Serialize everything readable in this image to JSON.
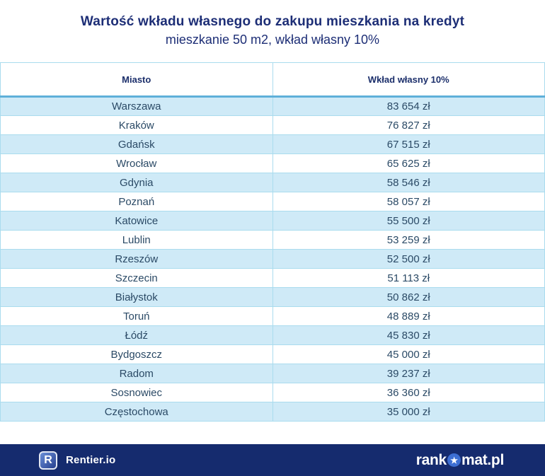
{
  "title": "Wartość wkładu własnego do zakupu mieszkania na kredyt",
  "subtitle": "mieszkanie 50 m2, wkład własny 10%",
  "table": {
    "headers": {
      "city": "Miasto",
      "value": "Wkład własny 10%"
    },
    "rows": [
      {
        "city": "Warszawa",
        "value": "83 654 zł"
      },
      {
        "city": "Kraków",
        "value": "76 827 zł"
      },
      {
        "city": "Gdańsk",
        "value": "67 515 zł"
      },
      {
        "city": "Wrocław",
        "value": "65 625 zł"
      },
      {
        "city": "Gdynia",
        "value": "58 546 zł"
      },
      {
        "city": "Poznań",
        "value": "58 057 zł"
      },
      {
        "city": "Katowice",
        "value": "55 500 zł"
      },
      {
        "city": "Lublin",
        "value": "53 259 zł"
      },
      {
        "city": "Rzeszów",
        "value": "52 500 zł"
      },
      {
        "city": "Szczecin",
        "value": "51 113 zł"
      },
      {
        "city": "Białystok",
        "value": "50 862 zł"
      },
      {
        "city": "Toruń",
        "value": "48 889 zł"
      },
      {
        "city": "Łódź",
        "value": "45 830 zł"
      },
      {
        "city": "Bydgoszcz",
        "value": "45 000 zł"
      },
      {
        "city": "Radom",
        "value": "39 237 zł"
      },
      {
        "city": "Sosnowiec",
        "value": "36 360 zł"
      },
      {
        "city": "Częstochowa",
        "value": "35 000 zł"
      }
    ]
  },
  "footer": {
    "rentier_initial": "R",
    "rentier_label": "Rentier.io",
    "rankomat_prefix": "rank",
    "rankomat_suffix": "mat.pl",
    "star_icon": "★"
  },
  "colors": {
    "navy_text": "#1d2e76",
    "table_text": "#2b4a66",
    "row_alt_bg": "#cfeaf7",
    "row_border": "#aadcee",
    "header_separator": "#5fb0d9",
    "footer_bg": "#152b6e",
    "star_circle_bg": "#3d6fd3"
  },
  "chart_data": {
    "type": "table",
    "title": "Wartość wkładu własnego do zakupu mieszkania na kredyt",
    "subtitle": "mieszkanie 50 m2, wkład własny 10%",
    "columns": [
      "Miasto",
      "Wkład własny 10%"
    ],
    "rows": [
      [
        "Warszawa",
        "83 654 zł"
      ],
      [
        "Kraków",
        "76 827 zł"
      ],
      [
        "Gdańsk",
        "67 515 zł"
      ],
      [
        "Wrocław",
        "65 625 zł"
      ],
      [
        "Gdynia",
        "58 546 zł"
      ],
      [
        "Poznań",
        "58 057 zł"
      ],
      [
        "Katowice",
        "55 500 zł"
      ],
      [
        "Lublin",
        "53 259 zł"
      ],
      [
        "Rzeszów",
        "52 500 zł"
      ],
      [
        "Szczecin",
        "51 113 zł"
      ],
      [
        "Białystok",
        "50 862 zł"
      ],
      [
        "Toruń",
        "48 889 zł"
      ],
      [
        "Łódź",
        "45 830 zł"
      ],
      [
        "Bydgoszcz",
        "45 000 zł"
      ],
      [
        "Radom",
        "39 237 zł"
      ],
      [
        "Sosnowiec",
        "36 360 zł"
      ],
      [
        "Częstochowa",
        "35 000 zł"
      ]
    ],
    "values_pln": [
      83654,
      76827,
      67515,
      65625,
      58546,
      58057,
      55500,
      53259,
      52500,
      51113,
      50862,
      48889,
      45830,
      45000,
      39237,
      36360,
      35000
    ],
    "currency": "zł"
  }
}
